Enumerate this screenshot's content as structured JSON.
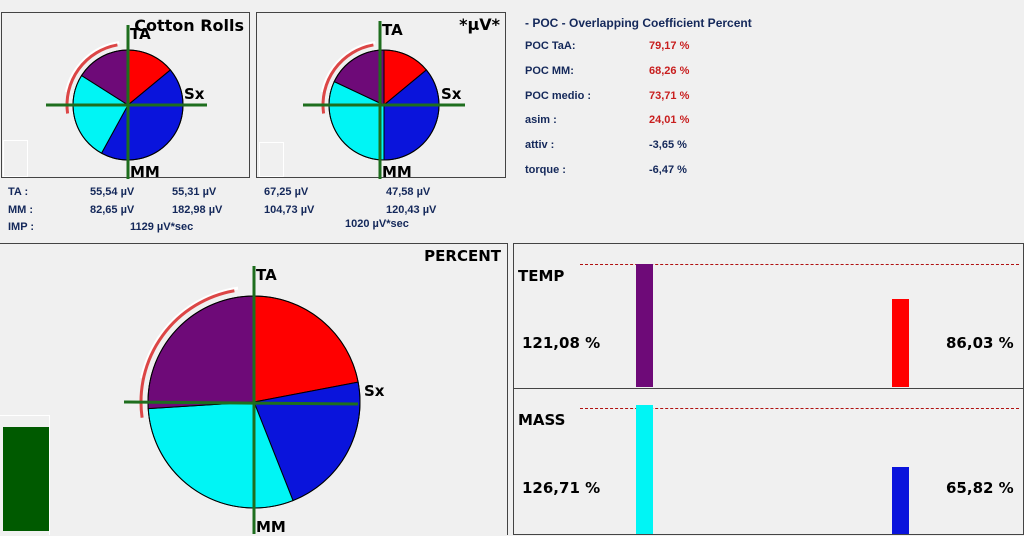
{
  "colors": {
    "purple": "#6e0a78",
    "red": "#ff0000",
    "blue": "#0a14dc",
    "cyan": "#00f5f5",
    "green_axis": "#1e6e1e",
    "dark_green": "#005a00",
    "arc": "#dc4646",
    "value_red": "#c81e1e",
    "value_navy": "#14285a"
  },
  "pie1": {
    "title": "Cotton Rolls",
    "slices": {
      "purple": 0.16,
      "red": 0.14,
      "blue": 0.44,
      "cyan": 0.26
    },
    "labels": {
      "top": "TA",
      "right": "Sx",
      "bottom": "MM"
    }
  },
  "pie2": {
    "title": "*µV*",
    "slices": {
      "purple": 0.18,
      "red": 0.14,
      "blue": 0.36,
      "cyan": 0.32
    },
    "labels": {
      "top": "TA",
      "right": "Sx",
      "bottom": "MM"
    }
  },
  "pie3": {
    "title": "PERCENT",
    "slices": {
      "purple": 0.26,
      "red": 0.22,
      "blue": 0.22,
      "cyan": 0.3
    },
    "labels": {
      "top": "TA",
      "right": "Sx",
      "bottom": "MM"
    }
  },
  "stats": {
    "ta_label": "TA :",
    "mm_label": "MM :",
    "imp_label": "IMP :",
    "ta_v1": "55,54 µV",
    "ta_v2": "55,31 µV",
    "ta_v3": "67,25 µV",
    "ta_v4": "47,58 µV",
    "mm_v1": "82,65 µV",
    "mm_v2": "182,98 µV",
    "mm_v3": "104,73 µV",
    "mm_v4": "120,43 µV",
    "imp_v1": "1129 µV*sec",
    "imp_v2": "1020 µV*sec"
  },
  "poc": {
    "title": "- POC - Overlapping Coefficient Percent",
    "rows": [
      {
        "label": "POC TaA:",
        "value": "79,17 %"
      },
      {
        "label": "POC MM:",
        "value": "68,26 %"
      },
      {
        "label": "POC medio :",
        "value": "73,71 %"
      },
      {
        "label": "asim :",
        "value": "24,01 %"
      },
      {
        "label": "attiv :",
        "value": "-3,65 %"
      },
      {
        "label": "torque :",
        "value": "-6,47 %"
      }
    ]
  },
  "temp": {
    "title": "TEMP",
    "left_pct": "121,08 %",
    "right_pct": "86,03 %"
  },
  "mass": {
    "title": "MASS",
    "left_pct": "126,71 %",
    "right_pct": "65,82 %"
  }
}
